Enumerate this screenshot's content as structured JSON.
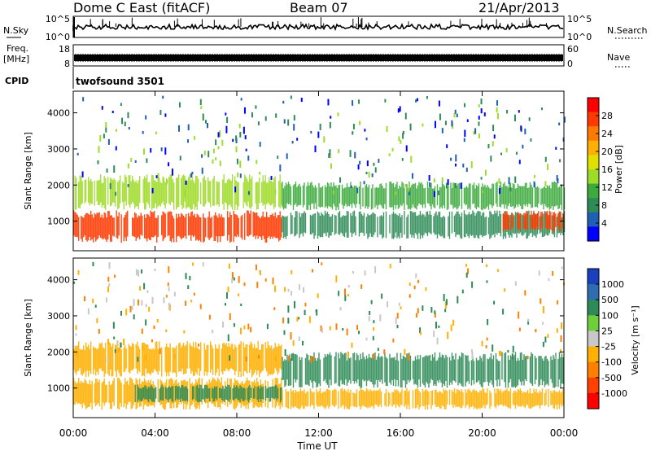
{
  "header": {
    "station": "Dome C East (fitACF)",
    "beam": "Beam 07",
    "date": "21/Apr/2013"
  },
  "panels": {
    "nsky": {
      "left_label": "N.Sky",
      "right_label": "N.Search",
      "ticks_left": [
        "10^5",
        "10^0"
      ],
      "ticks_right": [
        "10^5",
        "10^0"
      ]
    },
    "freq": {
      "left_label_1": "Freq.",
      "left_label_2": "[MHz]",
      "right_label": "Nave",
      "ticks_left": [
        "18",
        "8"
      ],
      "ticks_right": [
        "60",
        "0"
      ]
    },
    "cpid": {
      "label": "CPID",
      "value": "twofsound 3501"
    }
  },
  "colorbars": {
    "power": {
      "label": "Power [dB]",
      "ticks": [
        "28",
        "24",
        "20",
        "16",
        "12",
        "8",
        "4"
      ],
      "colors": [
        "#ff0000",
        "#ff3a00",
        "#ff7a00",
        "#ffb000",
        "#e0e000",
        "#9edc2a",
        "#3caa3c",
        "#2e8b57",
        "#1f5fb4",
        "#0000ff"
      ]
    },
    "velocity": {
      "label": "Velocity [m s⁻¹]",
      "ticks": [
        "1000",
        "500",
        "100",
        "25",
        "-25",
        "-100",
        "-500",
        "-1000"
      ],
      "colors": [
        "#1a3fbf",
        "#2f6cb0",
        "#2e8b57",
        "#6fcf3a",
        "#c8c8c8",
        "#ffb000",
        "#ff8000",
        "#ff4000",
        "#ff0000"
      ]
    }
  },
  "axes": {
    "y_label": "Slant Range [km]",
    "y_ticks": [
      "4000",
      "3000",
      "2000",
      "1000"
    ],
    "x_label": "Time UT",
    "x_ticks": [
      "00:00",
      "04:00",
      "08:00",
      "12:00",
      "16:00",
      "20:00",
      "00:00"
    ]
  },
  "chart_data": [
    {
      "type": "heatmap",
      "title": "",
      "xlabel": "",
      "ylabel": "Slant Range [km]",
      "x_range_hours_ut": [
        0,
        24
      ],
      "ylim": [
        180,
        4600
      ],
      "colorbar_label": "Power [dB]",
      "colorbar_ticks": [
        28,
        24,
        20,
        16,
        12,
        8,
        4
      ],
      "bands": [
        {
          "x_start": 0,
          "x_end": 10.2,
          "range_low": 400,
          "range_high": 1300,
          "value_db": 28
        },
        {
          "x_start": 0,
          "x_end": 10.2,
          "range_low": 1300,
          "range_high": 2300,
          "value_db": 16
        },
        {
          "x_start": 10.2,
          "x_end": 24,
          "range_low": 1300,
          "range_high": 2100,
          "value_db": 12
        },
        {
          "x_start": 10.2,
          "x_end": 24,
          "range_low": 500,
          "range_high": 1300,
          "value_db": 8
        },
        {
          "x_start": 21,
          "x_end": 24,
          "range_low": 700,
          "range_high": 1300,
          "value_db": 28
        }
      ]
    },
    {
      "type": "heatmap",
      "title": "",
      "xlabel": "Time UT",
      "ylabel": "Slant Range [km]",
      "x_range_hours_ut": [
        0,
        24
      ],
      "ylim": [
        180,
        4600
      ],
      "colorbar_label": "Velocity [m s⁻¹]",
      "colorbar_ticks": [
        1000,
        500,
        100,
        25,
        -25,
        -100,
        -500,
        -1000
      ],
      "bands": [
        {
          "x_start": 0,
          "x_end": 10.2,
          "range_low": 400,
          "range_high": 1300,
          "value_ms": -100
        },
        {
          "x_start": 3,
          "x_end": 10.2,
          "range_low": 600,
          "range_high": 1100,
          "value_ms": 100
        },
        {
          "x_start": 0,
          "x_end": 10.2,
          "range_low": 1300,
          "range_high": 2300,
          "value_ms": -100
        },
        {
          "x_start": 10.2,
          "x_end": 24,
          "range_low": 1000,
          "range_high": 2000,
          "value_ms": 100
        },
        {
          "x_start": 10.2,
          "x_end": 24,
          "range_low": 400,
          "range_high": 1000,
          "value_ms": -100
        }
      ]
    }
  ]
}
